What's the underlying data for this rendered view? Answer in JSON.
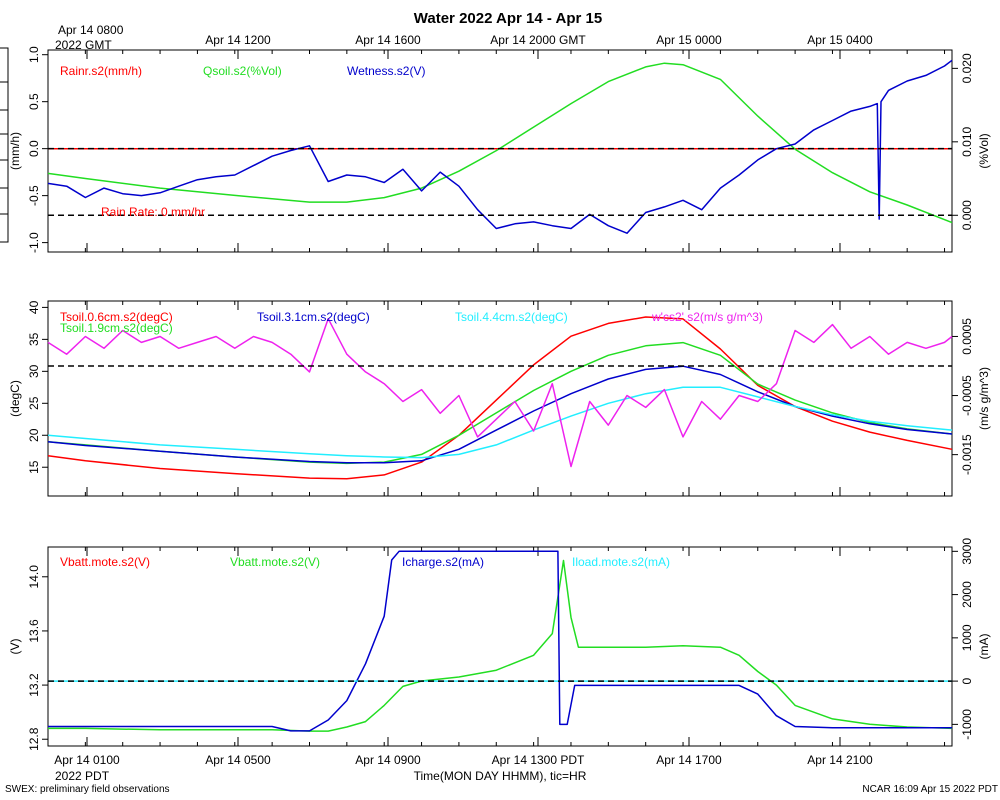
{
  "title": "Water 2022 Apr 14 - Apr 15",
  "top_axis": {
    "labels": [
      "Apr 14 0800",
      "Apr 14 1200",
      "Apr 14 1600",
      "Apr 14 2000 GMT",
      "Apr 15 0000",
      "Apr 15 0400"
    ],
    "sub_label": "2022 GMT"
  },
  "bottom_axis": {
    "labels": [
      "Apr 14 0100",
      "Apr 14 0500",
      "Apr 14 0900",
      "Apr 14 1300 PDT",
      "Apr 14 1700",
      "Apr 14 2100"
    ],
    "sub_label": "2022 PDT",
    "xlabel": "Time(MON DAY HHMM), tic=HR"
  },
  "footer": {
    "left": "SWEX: preliminary field observations",
    "right": "NCAR 16:09 Apr 15 2022 PDT"
  },
  "colors": {
    "red": "#ff0000",
    "green": "#22dd22",
    "blue": "#0000cc",
    "cyan": "#22eeff",
    "magenta": "#ee22ee",
    "black": "#000000"
  },
  "chart_data": [
    {
      "type": "line",
      "title": "Rain / soil moisture / wetness",
      "x_unit": "hours since Apr 14 0000 PDT",
      "xlim": [
        -1,
        23.2
      ],
      "left_axis": {
        "label": "(mm/h)",
        "ylim": [
          -1.1,
          1.05
        ],
        "ticks": [
          "1.0",
          "0.5",
          "0.0",
          "-0.5",
          "-1.0"
        ],
        "tick_values": [
          1.0,
          0.5,
          0.0,
          -0.5,
          -1.0
        ]
      },
      "right_axis": {
        "label": "(%Vol)",
        "ylim": [
          -0.005,
          0.0225
        ],
        "ticks": [
          "0.020",
          "0.010",
          "0.000"
        ],
        "tick_values": [
          0.02,
          0.01,
          0.0
        ]
      },
      "legend": [
        "Rainr.s2(mm/h)",
        "Qsoil.s2(%Vol)",
        "Wetness.s2(V)"
      ],
      "annotation": "Rain Rate: 0 mm/hr",
      "reference_lines": {
        "left_zero": 0.0,
        "right_zero": 0.0
      },
      "series": [
        {
          "name": "Rainr.s2(mm/h)",
          "axis": "left",
          "color": "red",
          "x": [
            -1,
            23.2
          ],
          "y": [
            0,
            0
          ]
        },
        {
          "name": "Qsoil.s2(%Vol)",
          "axis": "right",
          "color": "green",
          "x": [
            -1,
            0,
            2,
            4,
            6,
            7,
            8,
            9,
            10,
            11,
            12,
            13,
            14,
            15,
            15.5,
            16,
            17,
            18,
            19,
            20,
            21,
            22,
            23.2
          ],
          "y": [
            0.0057,
            0.005,
            0.0037,
            0.0027,
            0.0018,
            0.0018,
            0.0024,
            0.0037,
            0.006,
            0.0088,
            0.012,
            0.0152,
            0.0182,
            0.0202,
            0.0207,
            0.0205,
            0.0185,
            0.0135,
            0.009,
            0.0058,
            0.0032,
            0.0014,
            -0.001
          ]
        },
        {
          "name": "Wetness.s2(V)",
          "axis": "left",
          "color": "blue",
          "x": [
            -1,
            -0.5,
            0,
            0.5,
            1,
            1.5,
            2,
            2.5,
            3,
            3.5,
            4,
            4.5,
            5,
            5.5,
            6,
            6.5,
            7,
            7.5,
            8,
            8.5,
            9,
            9.5,
            10,
            10.5,
            11,
            11.5,
            12,
            12.5,
            13,
            13.5,
            14,
            14.5,
            15,
            15.5,
            16,
            16.5,
            17,
            17.5,
            18,
            18.5,
            19,
            19.5,
            20,
            20.5,
            21,
            21.2,
            21.25,
            21.3,
            21.5,
            22,
            22.5,
            23,
            23.2
          ],
          "y": [
            -0.37,
            -0.4,
            -0.52,
            -0.42,
            -0.48,
            -0.5,
            -0.47,
            -0.4,
            -0.33,
            -0.3,
            -0.28,
            -0.18,
            -0.08,
            -0.02,
            0.03,
            -0.35,
            -0.28,
            -0.3,
            -0.36,
            -0.22,
            -0.45,
            -0.25,
            -0.4,
            -0.65,
            -0.85,
            -0.8,
            -0.78,
            -0.82,
            -0.85,
            -0.7,
            -0.82,
            -0.9,
            -0.68,
            -0.62,
            -0.55,
            -0.65,
            -0.42,
            -0.28,
            -0.12,
            0.0,
            0.05,
            0.2,
            0.3,
            0.4,
            0.45,
            0.48,
            -0.75,
            0.5,
            0.62,
            0.72,
            0.78,
            0.88,
            0.94
          ]
        }
      ]
    },
    {
      "type": "line",
      "title": "Soil temperature / moisture flux",
      "x_unit": "hours since Apr 14 0000 PDT",
      "xlim": [
        -1,
        23.2
      ],
      "left_axis": {
        "label": "(degC)",
        "ylim": [
          10.5,
          41
        ],
        "ticks": [
          "40",
          "35",
          "30",
          "25",
          "20",
          "15"
        ],
        "tick_values": [
          40,
          35,
          30,
          25,
          20,
          15
        ]
      },
      "right_axis": {
        "label": "(m/s g/m^3)",
        "ylim": [
          -0.0022,
          0.0011
        ],
        "ticks": [
          "0.0005",
          "-0.0005",
          "-0.0015"
        ],
        "tick_values": [
          0.0005,
          -0.0005,
          -0.0015
        ]
      },
      "legend": [
        "Tsoil.0.6cm.s2(degC)",
        "Tsoil.1.9cm.s2(degC)",
        "Tsoil.3.1cm.s2(degC)",
        "Tsoil.4.4cm.s2(degC)",
        "w'cs2'.s2(m/s g/m^3)"
      ],
      "reference_lines": {
        "right_zero": 0.0
      },
      "series": [
        {
          "name": "Tsoil.0.6cm.s2(degC)",
          "axis": "left",
          "color": "red",
          "x": [
            -1,
            0,
            2,
            4,
            6,
            7,
            8,
            9,
            10,
            11,
            12,
            13,
            14,
            15,
            16,
            17,
            18,
            19,
            20,
            21,
            22,
            23.2
          ],
          "y": [
            16.8,
            16.0,
            14.8,
            14.0,
            13.3,
            13.2,
            13.8,
            15.8,
            20.0,
            25.5,
            31.0,
            35.5,
            37.5,
            38.5,
            38.2,
            33.5,
            27.8,
            24.5,
            22.2,
            20.5,
            19.2,
            17.8
          ]
        },
        {
          "name": "Tsoil.1.9cm.s2(degC)",
          "axis": "left",
          "color": "green",
          "x": [
            -1,
            0,
            2,
            4,
            6,
            7,
            8,
            9,
            10,
            11,
            12,
            13,
            14,
            15,
            16,
            17,
            18,
            19,
            20,
            21,
            22,
            23.2
          ],
          "y": [
            19.0,
            18.5,
            17.5,
            16.6,
            15.8,
            15.6,
            15.8,
            17.0,
            20.0,
            23.5,
            27.0,
            30.0,
            32.5,
            34.0,
            34.5,
            32.5,
            28.0,
            25.5,
            23.5,
            22.0,
            21.0,
            20.2
          ]
        },
        {
          "name": "Tsoil.3.1cm.s2(degC)",
          "axis": "left",
          "color": "blue",
          "x": [
            -1,
            0,
            2,
            4,
            6,
            7,
            8,
            9,
            10,
            11,
            12,
            13,
            14,
            15,
            16,
            17,
            18,
            19,
            20,
            21,
            22,
            23.2
          ],
          "y": [
            19.0,
            18.4,
            17.5,
            16.6,
            15.9,
            15.7,
            15.7,
            16.0,
            17.8,
            20.8,
            23.8,
            26.5,
            28.8,
            30.3,
            30.8,
            29.5,
            26.8,
            24.5,
            23.0,
            21.8,
            20.9,
            20.2
          ]
        },
        {
          "name": "Tsoil.4.4cm.s2(degC)",
          "axis": "left",
          "color": "cyan",
          "x": [
            -1,
            0,
            2,
            4,
            6,
            7,
            8,
            9,
            10,
            11,
            12,
            13,
            14,
            15,
            16,
            17,
            18,
            19,
            20,
            21,
            22,
            23.2
          ],
          "y": [
            20.0,
            19.5,
            18.5,
            17.8,
            17.1,
            16.8,
            16.6,
            16.5,
            17.0,
            18.5,
            20.8,
            23.0,
            25.0,
            26.5,
            27.5,
            27.5,
            26.0,
            24.5,
            23.2,
            22.2,
            21.5,
            20.8
          ]
        },
        {
          "name": "w'cs2'.s2(m/s g/m^3)",
          "axis": "right",
          "color": "magenta",
          "x": [
            -1,
            -0.5,
            0,
            0.5,
            1,
            1.5,
            2,
            2.5,
            3,
            3.5,
            4,
            4.5,
            5,
            5.5,
            6,
            6.5,
            7,
            7.5,
            8,
            8.5,
            9,
            9.5,
            10,
            10.5,
            11,
            11.5,
            12,
            12.5,
            13,
            13.5,
            14,
            14.5,
            15,
            15.5,
            16,
            16.5,
            17,
            17.5,
            18,
            18.5,
            19,
            19.5,
            20,
            20.5,
            21,
            21.5,
            22,
            22.5,
            23,
            23.2
          ],
          "y": [
            0.0004,
            0.0002,
            0.0005,
            0.0003,
            0.0006,
            0.0004,
            0.0005,
            0.0003,
            0.0004,
            0.0005,
            0.0003,
            0.0005,
            0.0004,
            0.0002,
            -0.0001,
            0.0008,
            0.0002,
            -0.0001,
            -0.0003,
            -0.0006,
            -0.0004,
            -0.0008,
            -0.0005,
            -0.0012,
            -0.0009,
            -0.0006,
            -0.0011,
            -0.0003,
            -0.0017,
            -0.0006,
            -0.001,
            -0.0005,
            -0.0007,
            -0.0004,
            -0.0012,
            -0.0006,
            -0.0009,
            -0.0005,
            -0.0006,
            -0.0003,
            0.0006,
            0.0004,
            0.0007,
            0.0003,
            0.0005,
            0.0002,
            0.0004,
            0.0003,
            0.0004,
            0.0005
          ]
        }
      ]
    },
    {
      "type": "line",
      "title": "Battery voltage / charge current",
      "x_unit": "hours since Apr 14 0000 PDT",
      "xlim": [
        -1,
        23.2
      ],
      "left_axis": {
        "label": "(V)",
        "ylim": [
          12.75,
          14.22
        ],
        "ticks": [
          "14.0",
          "13.6",
          "13.2",
          "12.8"
        ],
        "tick_values": [
          14.0,
          13.6,
          13.2,
          12.8
        ]
      },
      "right_axis": {
        "label": "(mA)",
        "ylim": [
          -1500,
          3100
        ],
        "ticks": [
          "3000",
          "2000",
          "1000",
          "0",
          "-1000"
        ],
        "tick_values": [
          3000,
          2000,
          1000,
          0,
          -1000
        ]
      },
      "legend": [
        "Vbatt.mote.s2(V)",
        "Vbatt.mote.s2(V)",
        "Icharge.s2(mA)",
        "Iload.mote.s2(mA)"
      ],
      "reference_lines": {
        "right_zero": 0.0
      },
      "series": [
        {
          "name": "Vbatt.mote.s2(V)",
          "axis": "left",
          "color": "red",
          "x": [],
          "y": []
        },
        {
          "name": "Vbatt.mote.s2(V)",
          "axis": "left",
          "color": "green",
          "x": [
            -1,
            0,
            2,
            3,
            4,
            5,
            6,
            6.5,
            7,
            7.5,
            8,
            8.5,
            9,
            10,
            11,
            12,
            12.5,
            12.8,
            13.0,
            13.2,
            13.5,
            14,
            15,
            16,
            17,
            17.5,
            18,
            18.5,
            19,
            20,
            21,
            22,
            23.2
          ],
          "y": [
            12.88,
            12.88,
            12.87,
            12.87,
            12.87,
            12.87,
            12.86,
            12.86,
            12.89,
            12.93,
            13.05,
            13.19,
            13.23,
            13.26,
            13.31,
            13.42,
            13.58,
            14.12,
            13.7,
            13.48,
            13.48,
            13.48,
            13.48,
            13.49,
            13.48,
            13.42,
            13.3,
            13.2,
            13.05,
            12.95,
            12.91,
            12.89,
            12.88
          ]
        },
        {
          "name": "Icharge.s2(mA)",
          "axis": "right",
          "color": "blue",
          "x": [
            -1,
            0,
            2,
            4,
            5,
            5.5,
            6,
            6.5,
            7,
            7.5,
            8,
            8.2,
            8.4,
            8.5,
            9,
            10,
            11,
            12,
            12.5,
            12.65,
            12.7,
            12.9,
            13.1,
            13.3,
            14,
            15,
            16,
            17,
            17.5,
            18,
            18.5,
            19,
            20,
            21,
            22,
            23.2
          ],
          "y": [
            -1050,
            -1050,
            -1050,
            -1050,
            -1050,
            -1150,
            -1150,
            -900,
            -450,
            400,
            1500,
            2800,
            3000,
            3000,
            3000,
            3000,
            3000,
            3000,
            3000,
            3000,
            -1000,
            -1000,
            -100,
            -100,
            -100,
            -100,
            -100,
            -100,
            -100,
            -300,
            -800,
            -1050,
            -1080,
            -1080,
            -1080,
            -1080
          ]
        },
        {
          "name": "Iload.mote.s2(mA)",
          "axis": "right",
          "color": "cyan",
          "x": [
            -1,
            23.2
          ],
          "y": [
            0,
            0
          ]
        }
      ]
    }
  ]
}
